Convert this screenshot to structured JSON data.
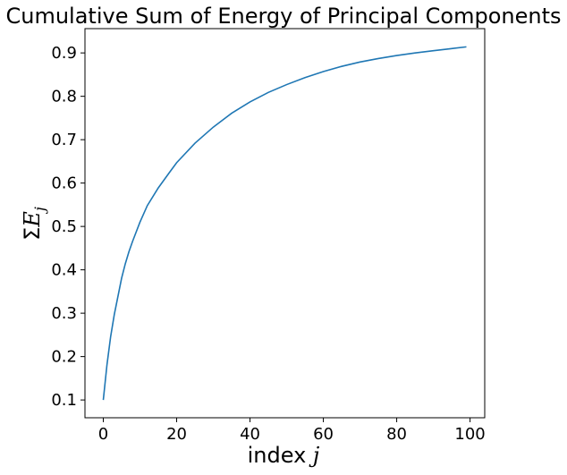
{
  "chart_data": {
    "type": "line",
    "title": "Cumulative Sum of Energy of Principal Components",
    "xlabel_prefix": "index ",
    "xlabel_var": "j",
    "ylabel_sigma": "Σ",
    "ylabel_var": "E",
    "ylabel_sub": "j",
    "xlim": [
      -5,
      104
    ],
    "ylim": [
      0.059,
      0.956
    ],
    "xticks": [
      0,
      20,
      40,
      60,
      80,
      100
    ],
    "yticks": [
      0.1,
      0.2,
      0.3,
      0.4,
      0.5,
      0.6,
      0.7,
      0.8,
      0.9
    ],
    "grid": false,
    "line_color": "#1f77b4",
    "series": [
      {
        "x": [
          0,
          1,
          2,
          3,
          4,
          5,
          6,
          7,
          8,
          10,
          12,
          15,
          18,
          20,
          25,
          30,
          35,
          40,
          45,
          50,
          55,
          60,
          65,
          70,
          75,
          80,
          85,
          90,
          95,
          99
        ],
        "values": [
          0.1,
          0.181,
          0.246,
          0.297,
          0.339,
          0.381,
          0.414,
          0.442,
          0.466,
          0.51,
          0.548,
          0.589,
          0.624,
          0.647,
          0.692,
          0.729,
          0.761,
          0.787,
          0.809,
          0.827,
          0.843,
          0.857,
          0.869,
          0.879,
          0.887,
          0.894,
          0.9,
          0.905,
          0.91,
          0.914
        ]
      }
    ]
  }
}
